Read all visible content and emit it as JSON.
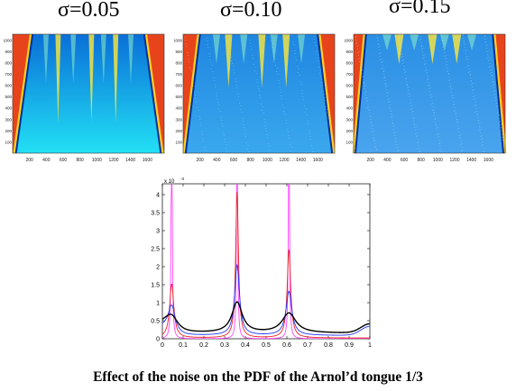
{
  "panels": [
    {
      "title": "σ=0.05",
      "noise": 0.05,
      "chart_data": {
        "type": "heatmap",
        "x_ticks": [
          "200",
          "400",
          "600",
          "800",
          "1000",
          "1200",
          "1400",
          "1600"
        ],
        "y_ticks": [
          "100",
          "200",
          "300",
          "400",
          "500",
          "600",
          "700",
          "800",
          "900",
          "1000"
        ],
        "tongue_peaks": [
          0.05,
          0.36,
          0.61
        ]
      }
    },
    {
      "title": "σ=0.10",
      "noise": 0.1,
      "chart_data": {
        "type": "heatmap",
        "x_ticks": [
          "200",
          "400",
          "600",
          "800",
          "1000",
          "1200",
          "1400",
          "1600"
        ],
        "y_ticks": [
          "100",
          "200",
          "300",
          "400",
          "500",
          "600",
          "700",
          "800",
          "900",
          "1000"
        ],
        "tongue_peaks": [
          0.05,
          0.36,
          0.61
        ]
      }
    },
    {
      "title": "σ=0.15",
      "noise": 0.15,
      "chart_data": {
        "type": "heatmap",
        "x_ticks": [
          "200",
          "400",
          "600",
          "800",
          "1000",
          "1200",
          "1400",
          "1600"
        ],
        "y_ticks": [
          "100",
          "200",
          "300",
          "400",
          "500",
          "600",
          "700",
          "800",
          "900",
          "1000"
        ],
        "tongue_peaks": [
          0.05,
          0.36,
          0.61
        ]
      }
    }
  ],
  "chart_data": {
    "type": "line",
    "x_ticks": [
      "0",
      "0.1",
      "0.2",
      "0.3",
      "0.4",
      "0.5",
      "0.6",
      "0.7",
      "0.8",
      "0.9",
      "1"
    ],
    "y_ticks": [
      "0",
      "0.5",
      "1",
      "1.5",
      "2",
      "2.5",
      "3",
      "3.5",
      "4"
    ],
    "y_multiplier": "x 10",
    "y_exponent": "-3",
    "xlim": [
      0,
      1
    ],
    "ylim": [
      0,
      4.3
    ],
    "peaks": [
      0.045,
      0.36,
      0.61
    ],
    "series": [
      {
        "color": "#ff44ff",
        "heights": [
          9,
          9,
          9
        ],
        "widths": [
          0.0025,
          0.0025,
          0.0025
        ],
        "base": 0
      },
      {
        "color": "#ee2222",
        "heights": [
          1.5,
          4.05,
          2.45
        ],
        "widths": [
          0.012,
          0.008,
          0.01
        ],
        "base": 0.02
      },
      {
        "color": "#2233ff",
        "heights": [
          0.72,
          1.95,
          1.22
        ],
        "widths": [
          0.02,
          0.014,
          0.017
        ],
        "base": 0.15
      },
      {
        "color": "#000000",
        "heights": [
          0.38,
          0.85,
          0.55
        ],
        "widths": [
          0.038,
          0.03,
          0.04
        ],
        "base": 0.26
      }
    ]
  },
  "caption": "Effect of the noise on the PDF of the Arnol’d tongue 1/3"
}
